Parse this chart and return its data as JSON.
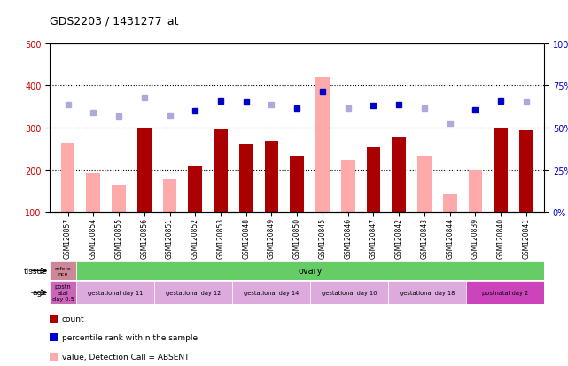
{
  "title": "GDS2203 / 1431277_at",
  "samples": [
    "GSM120857",
    "GSM120854",
    "GSM120855",
    "GSM120856",
    "GSM120851",
    "GSM120852",
    "GSM120853",
    "GSM120848",
    "GSM120849",
    "GSM120850",
    "GSM120845",
    "GSM120846",
    "GSM120847",
    "GSM120842",
    "GSM120843",
    "GSM120844",
    "GSM120839",
    "GSM120840",
    "GSM120841"
  ],
  "count_values": [
    null,
    null,
    null,
    300,
    null,
    210,
    295,
    262,
    268,
    232,
    null,
    null,
    254,
    276,
    null,
    null,
    null,
    297,
    293
  ],
  "count_absent": [
    265,
    193,
    163,
    null,
    179,
    null,
    null,
    null,
    null,
    null,
    420,
    224,
    null,
    null,
    233,
    143,
    200,
    null,
    null
  ],
  "rank_present": [
    null,
    null,
    null,
    null,
    null,
    340,
    362,
    360,
    null,
    347,
    385,
    null,
    352,
    355,
    null,
    null,
    341,
    363,
    null
  ],
  "rank_absent": [
    355,
    335,
    327,
    372,
    329,
    null,
    null,
    null,
    355,
    null,
    null,
    347,
    null,
    null,
    347,
    310,
    null,
    null,
    360
  ],
  "ylim_left": [
    100,
    500
  ],
  "ylim_right": [
    0,
    100
  ],
  "yticks_left": [
    100,
    200,
    300,
    400,
    500
  ],
  "yticks_right": [
    0,
    25,
    50,
    75,
    100
  ],
  "bar_width": 0.55,
  "count_color": "#aa0000",
  "count_absent_color": "#ffaaaa",
  "rank_present_color": "#0000cc",
  "rank_absent_color": "#aaaadd",
  "bg_color": "#ffffff",
  "plot_bg_color": "#ffffff",
  "left_axis_color": "#cc0000",
  "right_axis_color": "#0000cc",
  "grid_dotted_vals": [
    200,
    300,
    400
  ],
  "tissue_ref_label": "refere\nnce",
  "tissue_ref_color": "#cc8899",
  "tissue_main_label": "ovary",
  "tissue_main_color": "#66cc66",
  "age_segments": [
    {
      "label": "postn\natal\nday 0.5",
      "color": "#cc66bb",
      "count": 1
    },
    {
      "label": "gestational day 11",
      "color": "#ddaadd",
      "count": 3
    },
    {
      "label": "gestational day 12",
      "color": "#ddaadd",
      "count": 3
    },
    {
      "label": "gestational day 14",
      "color": "#ddaadd",
      "count": 3
    },
    {
      "label": "gestational day 16",
      "color": "#ddaadd",
      "count": 3
    },
    {
      "label": "gestational day 18",
      "color": "#ddaadd",
      "count": 3
    },
    {
      "label": "postnatal day 2",
      "color": "#cc44bb",
      "count": 3
    }
  ],
  "legend_items": [
    {
      "color": "#aa0000",
      "label": "count"
    },
    {
      "color": "#0000cc",
      "label": "percentile rank within the sample"
    },
    {
      "color": "#ffaaaa",
      "label": "value, Detection Call = ABSENT"
    },
    {
      "color": "#aaaadd",
      "label": "rank, Detection Call = ABSENT"
    }
  ]
}
